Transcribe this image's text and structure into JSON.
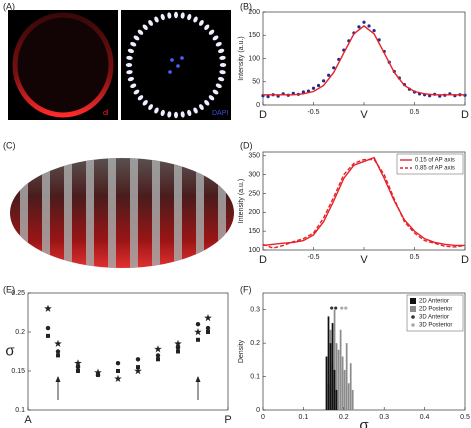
{
  "panels": {
    "labels": [
      "(A)",
      "(B)",
      "(C)",
      "(D)",
      "(E)",
      "(F)"
    ],
    "image_a": {
      "left_caption": "dl",
      "right_caption": "DAPI"
    }
  },
  "chart_data": [
    {
      "type": "line",
      "ylabel": "Intensity (a.u.)",
      "xlim": [
        -1,
        1
      ],
      "xticks": [
        {
          "value": -1,
          "label": "D"
        },
        -0.5,
        {
          "value": 0,
          "label": "V"
        },
        0.5,
        {
          "value": 1,
          "label": "D"
        }
      ],
      "ylim": [
        0,
        200
      ],
      "yticks": [
        0,
        50,
        100,
        150,
        200
      ],
      "series": [
        {
          "style": "markers",
          "color": "#1f2d8a",
          "x": [
            -1,
            -0.95,
            -0.9,
            -0.85,
            -0.8,
            -0.75,
            -0.7,
            -0.65,
            -0.6,
            -0.55,
            -0.5,
            -0.45,
            -0.4,
            -0.35,
            -0.3,
            -0.25,
            -0.2,
            -0.15,
            -0.1,
            -0.05,
            0,
            0.05,
            0.1,
            0.15,
            0.2,
            0.25,
            0.3,
            0.35,
            0.4,
            0.45,
            0.5,
            0.55,
            0.6,
            0.65,
            0.7,
            0.75,
            0.8,
            0.85,
            0.9,
            0.95,
            1
          ],
          "values": [
            20,
            18,
            22,
            19,
            24,
            21,
            25,
            23,
            28,
            30,
            36,
            42,
            52,
            64,
            80,
            98,
            118,
            138,
            155,
            168,
            178,
            170,
            160,
            140,
            115,
            92,
            72,
            58,
            44,
            34,
            28,
            24,
            22,
            20,
            23,
            19,
            21,
            24,
            20,
            22,
            21
          ]
        },
        {
          "style": "line",
          "color": "#e8202a",
          "x": [
            -1,
            -0.9,
            -0.8,
            -0.7,
            -0.6,
            -0.5,
            -0.4,
            -0.3,
            -0.2,
            -0.1,
            0,
            0.1,
            0.2,
            0.3,
            0.4,
            0.5,
            0.6,
            0.7,
            0.8,
            0.9,
            1
          ],
          "values": [
            22,
            22,
            22,
            22,
            24,
            29,
            42,
            70,
            112,
            153,
            170,
            153,
            112,
            70,
            42,
            29,
            24,
            22,
            22,
            22,
            22
          ]
        }
      ]
    },
    {
      "type": "line",
      "ylabel": "Intensity (a.u.)",
      "xlim": [
        -1,
        1
      ],
      "xticks": [
        {
          "value": -1,
          "label": "D"
        },
        -0.5,
        {
          "value": 0,
          "label": "V"
        },
        0.5,
        {
          "value": 1,
          "label": "D"
        }
      ],
      "ylim": [
        100,
        360
      ],
      "yticks": [
        100,
        150,
        200,
        250,
        300,
        350
      ],
      "legend": "upper right",
      "series": [
        {
          "name": "0.15 of AP axis",
          "style": "line",
          "dash": false,
          "color": "#e8202a",
          "x": [
            -1,
            -0.9,
            -0.8,
            -0.7,
            -0.6,
            -0.5,
            -0.4,
            -0.3,
            -0.2,
            -0.1,
            0,
            0.1,
            0.2,
            0.3,
            0.4,
            0.5,
            0.6,
            0.7,
            0.8,
            0.9,
            1
          ],
          "values": [
            112,
            115,
            118,
            120,
            125,
            140,
            175,
            230,
            290,
            325,
            335,
            345,
            290,
            230,
            180,
            150,
            130,
            120,
            115,
            112,
            112
          ]
        },
        {
          "name": "0.85 of AP axis",
          "style": "line",
          "dash": true,
          "color": "#e8202a",
          "x": [
            -1,
            -0.9,
            -0.8,
            -0.7,
            -0.6,
            -0.5,
            -0.4,
            -0.3,
            -0.2,
            -0.1,
            0,
            0.1,
            0.2,
            0.3,
            0.4,
            0.5,
            0.6,
            0.7,
            0.8,
            0.9,
            1
          ],
          "values": [
            115,
            105,
            112,
            122,
            130,
            145,
            185,
            240,
            300,
            330,
            340,
            340,
            300,
            235,
            175,
            145,
            125,
            118,
            110,
            108,
            112
          ]
        }
      ]
    },
    {
      "type": "scatter",
      "ylabel": "σ",
      "xlim": [
        0,
        1
      ],
      "xticks": [
        {
          "value": 0,
          "label": "A"
        },
        {
          "value": 1,
          "label": "P"
        }
      ],
      "ylim": [
        0.1,
        0.25
      ],
      "yticks": [
        0.1,
        0.15,
        0.2,
        0.25
      ],
      "x": [
        0.1,
        0.15,
        0.25,
        0.35,
        0.45,
        0.55,
        0.65,
        0.75,
        0.85,
        0.9
      ],
      "arrows_x": [
        0.15,
        0.85
      ],
      "series": [
        {
          "marker": "star",
          "color": "#222",
          "values": [
            0.23,
            0.185,
            0.16,
            0.148,
            0.14,
            0.15,
            0.178,
            0.185,
            0.2,
            0.218
          ]
        },
        {
          "marker": "circle",
          "color": "#222",
          "values": [
            0.205,
            0.175,
            0.155,
            0.145,
            0.16,
            0.165,
            0.17,
            0.18,
            0.21,
            0.205
          ]
        },
        {
          "marker": "square",
          "color": "#222",
          "values": [
            0.195,
            0.17,
            0.15,
            0.145,
            0.15,
            0.155,
            0.165,
            0.175,
            0.19,
            0.2
          ]
        }
      ]
    },
    {
      "type": "histogram",
      "ylabel": "Density",
      "xlabel": "σ",
      "xlim": [
        0,
        0.5
      ],
      "xticks": [
        0,
        0.1,
        0.2,
        0.3,
        0.4,
        0.5
      ],
      "ylim": [
        0,
        0.35
      ],
      "yticks": [
        0,
        0.1,
        0.2,
        0.3
      ],
      "legend": "upper right",
      "series": [
        {
          "name": "2D Anterior",
          "color": "#111",
          "bins": [
            0.155,
            0.16,
            0.165,
            0.17,
            0.175,
            0.18,
            0.185
          ],
          "values": [
            0.16,
            0.28,
            0.2,
            0.26,
            0.12,
            0.06
          ]
        },
        {
          "name": "2D Posterior",
          "color": "#8c8c8c",
          "bins": [
            0.16,
            0.165,
            0.17,
            0.175,
            0.18,
            0.185,
            0.19,
            0.195,
            0.2,
            0.205,
            0.21,
            0.215,
            0.22,
            0.225
          ],
          "values": [
            0.08,
            0.24,
            0.14,
            0.3,
            0.2,
            0.18,
            0.24,
            0.16,
            0.12,
            0.2,
            0.08,
            0.14,
            0.06
          ]
        },
        {
          "name": "3D Anterior",
          "color": "#333",
          "x": [
            0.17,
            0.18
          ],
          "values": [
            0.305,
            0.305
          ]
        },
        {
          "name": "3D Posterior",
          "color": "#aaa",
          "x": [
            0.195,
            0.205
          ],
          "values": [
            0.305,
            0.305
          ]
        }
      ]
    }
  ]
}
